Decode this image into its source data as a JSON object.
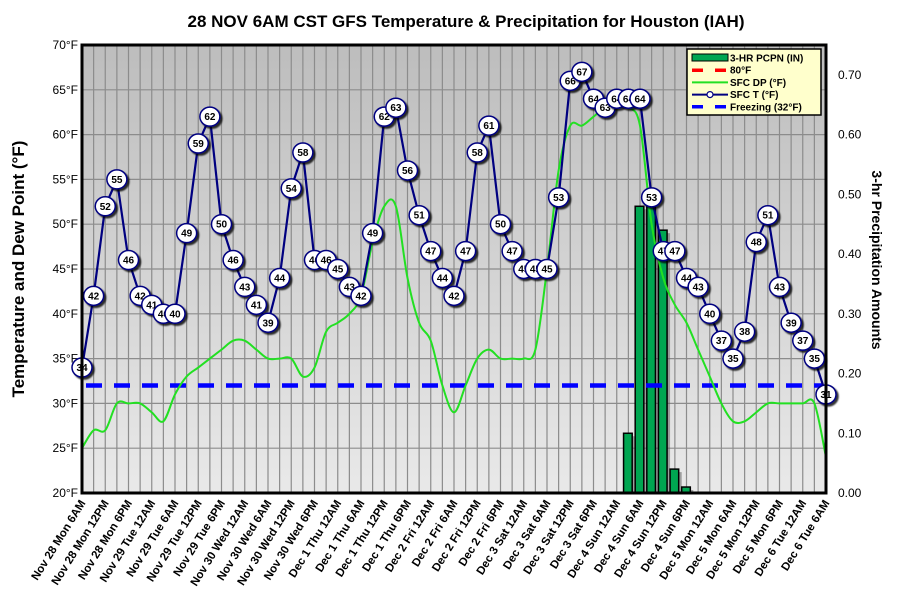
{
  "chart_data": {
    "type": "line",
    "title": "28 NOV 6AM CST GFS Temperature & Precipitation for Houston (IAH)",
    "ylabel": "Temperature and Dew Point (°F)",
    "y2label": "3-hr Precipitation Amounts",
    "ylim": [
      20,
      70
    ],
    "y2lim": [
      0,
      0.75
    ],
    "yticks": [
      "20°F",
      "25°F",
      "30°F",
      "35°F",
      "40°F",
      "45°F",
      "50°F",
      "55°F",
      "60°F",
      "65°F",
      "70°F"
    ],
    "y2ticks": [
      "0.00",
      "0.10",
      "0.20",
      "0.30",
      "0.40",
      "0.50",
      "0.60",
      "0.70"
    ],
    "grid": true,
    "legend_position": "top-right",
    "legend": [
      {
        "label": "3-HR PCPN  (IN)",
        "kind": "bar",
        "color": "#00a651"
      },
      {
        "label": "80°F",
        "kind": "dashed",
        "color": "#ff0000"
      },
      {
        "label": "SFC DP (°F)",
        "kind": "line",
        "color": "#22e022"
      },
      {
        "label": "SFC T (°F)",
        "kind": "line-marker",
        "color": "#000080"
      },
      {
        "label": "Freezing (32°F)",
        "kind": "dashed",
        "color": "#0000ff"
      }
    ],
    "x_labels": [
      "Nov 28 Mon 6AM",
      "Nov 28 Mon 12PM",
      "Nov 28 Mon 6PM",
      "Nov 29 Tue 12AM",
      "Nov 29 Tue 6AM",
      "Nov 29 Tue 12PM",
      "Nov 29 Tue 6PM",
      "Nov 30 Wed 12AM",
      "Nov 30 Wed 6AM",
      "Nov 30 Wed 12PM",
      "Nov 30 Wed 6PM",
      "Dec 1 Thu 12AM",
      "Dec 1 Thu 6AM",
      "Dec 1 Thu 12PM",
      "Dec 1 Thu 6PM",
      "Dec 2 Fri 12AM",
      "Dec 2 Fri 6AM",
      "Dec 2 Fri 12PM",
      "Dec 2 Fri 6PM",
      "Dec 3 Sat 12AM",
      "Dec 3 Sat 6AM",
      "Dec 3 Sat 12PM",
      "Dec 3 Sat 6PM",
      "Dec 4 Sun 12AM",
      "Dec 4 Sun 6AM",
      "Dec 4 Sun 12PM",
      "Dec 4 Sun 6PM",
      "Dec 5 Mon 12AM",
      "Dec 5 Mon 6AM",
      "Dec 5 Mon 12PM",
      "Dec 5 Mon 6PM",
      "Dec 6 Tue 12AM",
      "Dec 6 Tue 6AM"
    ],
    "x_step_hours": 3,
    "series": [
      {
        "name": "SFC T (°F)",
        "color": "#000080",
        "values": [
          34,
          42,
          52,
          55,
          46,
          42,
          41,
          40,
          40,
          49,
          59,
          62,
          50,
          46,
          43,
          41,
          39,
          44,
          54,
          58,
          46,
          46,
          45,
          43,
          42,
          49,
          62,
          63,
          56,
          51,
          47,
          44,
          42,
          47,
          58,
          61,
          50,
          47,
          45,
          45,
          45,
          53,
          66,
          67,
          64,
          63,
          64,
          64,
          64,
          53,
          47,
          47,
          44,
          43,
          40,
          37,
          35,
          38,
          48,
          51,
          43,
          39,
          37,
          35,
          31
        ]
      },
      {
        "name": "SFC DP (°F)",
        "color": "#22e022",
        "values": [
          25,
          27,
          27,
          30,
          30,
          30,
          29,
          28,
          31,
          33,
          34,
          35,
          36,
          37,
          37,
          36,
          35,
          35,
          35,
          33,
          34,
          38,
          39,
          40,
          42,
          48,
          52,
          52,
          44,
          39,
          37,
          32,
          29,
          32,
          35,
          36,
          35,
          35,
          35,
          36,
          45,
          56,
          61,
          61,
          62,
          63,
          63,
          63,
          61,
          50,
          44,
          41,
          39,
          36,
          33,
          30,
          28,
          28,
          29,
          30,
          30,
          30,
          30,
          30,
          24
        ]
      },
      {
        "name": "Freezing (32°F)",
        "color": "#0000ff",
        "values": [
          32
        ]
      },
      {
        "name": "3-HR PCPN (IN)",
        "color": "#00a651",
        "axis": "right",
        "type": "bar",
        "indices": [
          47,
          48,
          49,
          50,
          51,
          52
        ],
        "values": [
          0.1,
          0.48,
          0.48,
          0.44,
          0.04,
          0.01
        ]
      }
    ]
  }
}
